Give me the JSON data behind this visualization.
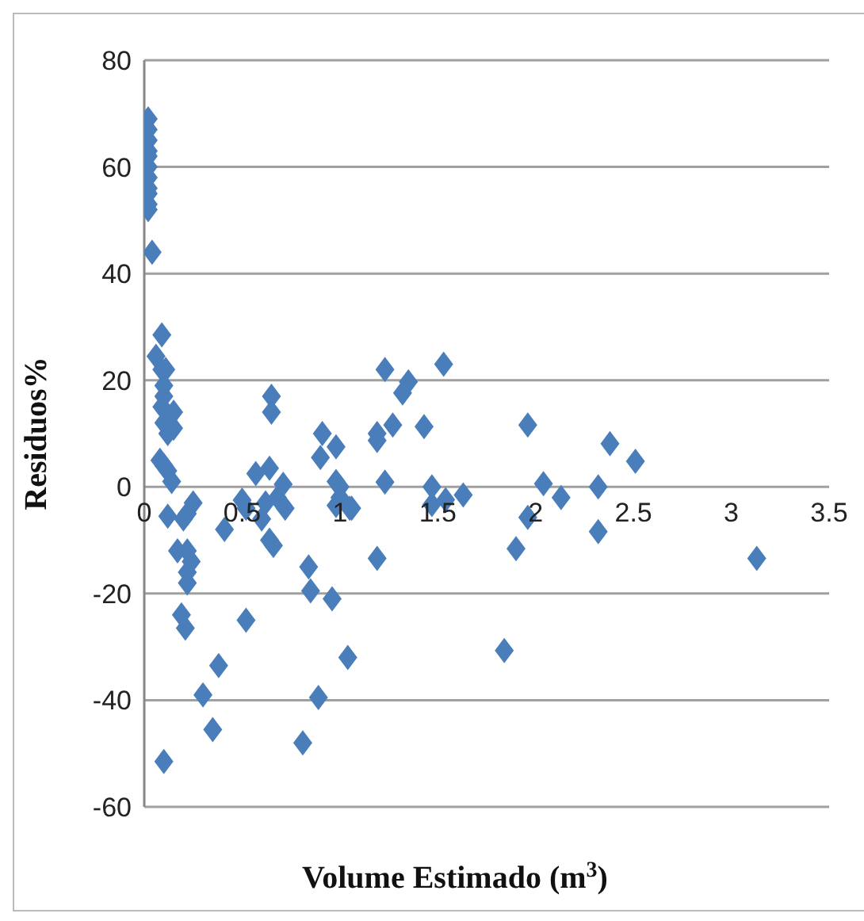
{
  "chart_data": {
    "type": "scatter",
    "xlabel": "Volume Estimado (m$^{3}$)",
    "ylabel": "Residuos%",
    "xlim": [
      0,
      3.5
    ],
    "xticks": [
      0,
      0.5,
      1,
      1.5,
      2,
      2.5,
      3,
      3.5
    ],
    "ylim": [
      -60,
      80
    ],
    "yticks": [
      -60,
      -40,
      -20,
      0,
      20,
      40,
      60,
      80
    ],
    "grid": "y",
    "legend": false,
    "marker": "diamond",
    "series": [
      {
        "color": "#4a7ebb",
        "x": [
          0.02,
          0.02,
          0.02,
          0.02,
          0.02,
          0.02,
          0.02,
          0.02,
          0.02,
          0.02,
          0.02,
          0.04,
          0.06,
          0.09,
          0.09,
          0.11,
          0.1,
          0.1,
          0.09,
          0.1,
          0.12,
          0.08,
          0.1,
          0.12,
          0.14,
          0.12,
          0.15,
          0.15,
          0.17,
          0.19,
          0.21,
          0.1,
          0.2,
          0.22,
          0.22,
          0.22,
          0.22,
          0.24,
          0.25,
          0.3,
          0.35,
          0.38,
          0.41,
          0.5,
          0.52,
          0.52,
          0.57,
          0.6,
          0.62,
          0.64,
          0.65,
          0.65,
          0.64,
          0.66,
          0.68,
          0.71,
          0.72,
          0.81,
          0.84,
          0.85,
          0.89,
          0.91,
          0.9,
          0.96,
          0.98,
          0.98,
          0.98,
          1.0,
          1.0,
          1.04,
          1.06,
          1.05,
          1.23,
          1.35,
          1.32,
          1.53,
          1.27,
          1.19,
          1.19,
          1.43,
          1.23,
          1.47,
          1.47,
          1.54,
          1.63,
          1.96,
          2.04,
          2.13,
          1.96,
          1.9,
          2.32,
          2.32,
          2.38,
          2.51,
          3.13,
          1.84,
          1.19
        ],
        "values": [
          69,
          67,
          65,
          63,
          62,
          60,
          58,
          56,
          55,
          53,
          52,
          44,
          24.5,
          28.5,
          22,
          22,
          19,
          17,
          15,
          12,
          10,
          5,
          4,
          3,
          1,
          -5.5,
          14,
          11,
          -12,
          -24,
          -26.5,
          -51.5,
          -6,
          -5,
          -12,
          -16,
          -18,
          -14,
          -3,
          -39,
          -45.5,
          -33.5,
          -8,
          -2.5,
          -25,
          -4,
          2.5,
          -6,
          -3,
          3.5,
          17,
          14,
          -10,
          -11,
          -2,
          0.5,
          -4,
          -48,
          -15,
          -19.5,
          -39.5,
          10,
          5.5,
          -21,
          7.5,
          1,
          -3.5,
          0,
          -2,
          -32,
          -4,
          -4,
          22,
          19.7,
          17.6,
          23,
          11.6,
          8.7,
          10,
          11.3,
          0.9,
          0,
          -3.3,
          -2.4,
          -1.5,
          11.6,
          0.6,
          -2,
          -5.7,
          -11.6,
          0,
          -8.4,
          8.1,
          4.8,
          -13.4,
          -30.7,
          -13.4
        ]
      }
    ]
  }
}
